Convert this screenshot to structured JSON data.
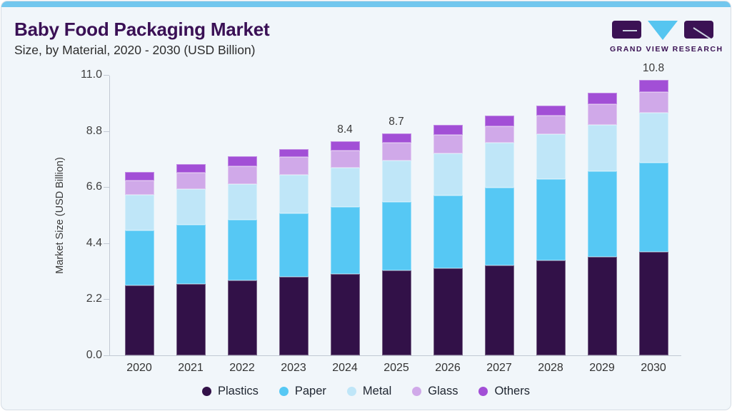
{
  "header": {
    "title": "Baby Food Packaging Market",
    "subtitle": "Size, by Material, 2020 - 2030 (USD Billion)",
    "brand": "GRAND VIEW RESEARCH"
  },
  "colors": {
    "accent_bar": "#72c7ee",
    "card_bg": "#f1f6fa",
    "card_border": "#d6dde5",
    "title_text": "#3a1055",
    "logo_purple": "#3b1254",
    "logo_blue": "#56c5f0",
    "axis_line": "#c2c9d3",
    "axis_text": "#3f3f3f"
  },
  "chart_data": {
    "type": "bar",
    "stacked": true,
    "title": "Baby Food Packaging Market Size, by Material, 2020 - 2030 (USD Billion)",
    "xlabel": "",
    "ylabel": "Market Size (USD Billion)",
    "ylim": [
      0,
      11
    ],
    "yticks": [
      "0.0",
      "2.2",
      "4.4",
      "6.6",
      "8.8",
      "11.0"
    ],
    "grid": false,
    "legend_position": "bottom",
    "categories": [
      "2020",
      "2021",
      "2022",
      "2023",
      "2024",
      "2025",
      "2026",
      "2027",
      "2028",
      "2029",
      "2030"
    ],
    "series": [
      {
        "name": "Plastics",
        "color": "#321148",
        "values": [
          2.75,
          2.81,
          2.95,
          3.07,
          3.18,
          3.33,
          3.42,
          3.53,
          3.71,
          3.85,
          4.06
        ]
      },
      {
        "name": "Paper",
        "color": "#56c8f4",
        "values": [
          2.15,
          2.32,
          2.38,
          2.5,
          2.65,
          2.7,
          2.84,
          3.05,
          3.19,
          3.37,
          3.51
        ]
      },
      {
        "name": "Metal",
        "color": "#bfe6f8",
        "values": [
          1.39,
          1.4,
          1.39,
          1.51,
          1.54,
          1.6,
          1.66,
          1.75,
          1.78,
          1.81,
          1.95
        ]
      },
      {
        "name": "Glass",
        "color": "#d0a9e9",
        "values": [
          0.56,
          0.64,
          0.7,
          0.7,
          0.67,
          0.72,
          0.73,
          0.67,
          0.72,
          0.81,
          0.82
        ]
      },
      {
        "name": "Others",
        "color": "#a24fd6",
        "values": [
          0.35,
          0.33,
          0.38,
          0.32,
          0.36,
          0.35,
          0.4,
          0.4,
          0.4,
          0.46,
          0.46
        ]
      }
    ],
    "totals": [
      7.2,
      7.5,
      7.8,
      8.1,
      8.4,
      8.7,
      9.05,
      9.4,
      9.8,
      10.3,
      10.8
    ],
    "annotations": [
      {
        "category": "2024",
        "label": "8.4"
      },
      {
        "category": "2025",
        "label": "8.7"
      },
      {
        "category": "2030",
        "label": "10.8"
      }
    ]
  }
}
